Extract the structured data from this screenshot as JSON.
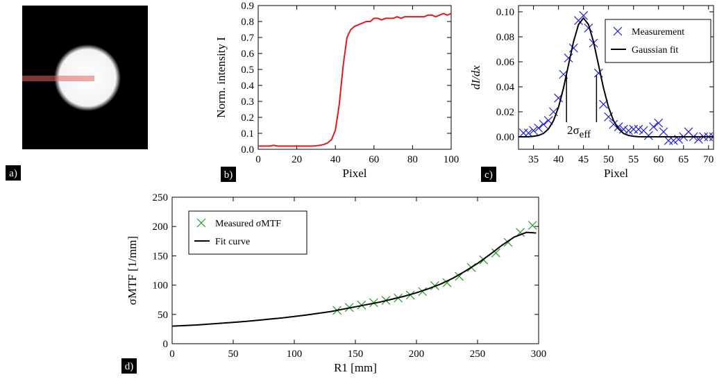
{
  "chart_data": [
    {
      "type": "image",
      "label": "a)"
    },
    {
      "type": "line",
      "label": "b)",
      "xlabel": "Pixel",
      "ylabel": "Norm. intensity I",
      "xlim": [
        0,
        100
      ],
      "xticks": [
        0,
        20,
        40,
        60,
        80,
        100
      ],
      "ylim": [
        0,
        0.9
      ],
      "yticks": [
        {
          "value": 0,
          "label": "0.0"
        },
        0.1,
        0.2,
        0.3,
        0.4,
        0.5,
        0.6,
        0.7,
        0.8,
        0.9
      ],
      "series": [
        {
          "color": "#e8141c",
          "style": "line",
          "x": [
            0,
            2,
            4,
            6,
            8,
            10,
            12,
            14,
            16,
            18,
            20,
            22,
            24,
            26,
            28,
            30,
            32,
            34,
            36,
            38,
            40,
            42,
            44,
            46,
            48,
            50,
            52,
            54,
            56,
            58,
            60,
            62,
            64,
            66,
            68,
            70,
            72,
            74,
            76,
            78,
            80,
            82,
            84,
            86,
            88,
            90,
            92,
            94,
            96,
            98,
            100
          ],
          "values": [
            0.02,
            0.02,
            0.02,
            0.02,
            0.025,
            0.02,
            0.02,
            0.02,
            0.02,
            0.02,
            0.02,
            0.02,
            0.02,
            0.02,
            0.02,
            0.022,
            0.025,
            0.03,
            0.04,
            0.06,
            0.12,
            0.28,
            0.52,
            0.7,
            0.75,
            0.77,
            0.78,
            0.79,
            0.8,
            0.8,
            0.82,
            0.82,
            0.81,
            0.82,
            0.82,
            0.82,
            0.83,
            0.82,
            0.83,
            0.83,
            0.83,
            0.83,
            0.83,
            0.83,
            0.84,
            0.84,
            0.83,
            0.84,
            0.85,
            0.84,
            0.85
          ]
        }
      ]
    },
    {
      "type": "scatter",
      "label": "c)",
      "xlabel": "Pixel",
      "ylabel": "dI/dx",
      "legend": "upper right",
      "xlim": [
        32,
        71
      ],
      "xticks": [
        35,
        40,
        45,
        50,
        55,
        60,
        65,
        70
      ],
      "ylim": [
        -0.01,
        0.105
      ],
      "yticks": [
        {
          "value": 0,
          "label": "0.00"
        },
        0.02,
        0.04,
        0.06,
        0.08,
        {
          "value": 0.1,
          "label": "0.10"
        }
      ],
      "annotation": "2σ",
      "annotation_sub": "eff",
      "annotation_lines": [
        41.6,
        47.6
      ],
      "series": [
        {
          "name": "Measurement",
          "color": "#1f1fe0",
          "style": "marker",
          "x": [
            33,
            34,
            35,
            36,
            37,
            38,
            39,
            40,
            41,
            42,
            43,
            44,
            45,
            46,
            47,
            48,
            49,
            50,
            51,
            52,
            53,
            54,
            55,
            56,
            57,
            58,
            59,
            60,
            61,
            62,
            63,
            64,
            65,
            66,
            67,
            68,
            69,
            70,
            71
          ],
          "values": [
            0.003,
            0.003,
            0.005,
            0.007,
            0.01,
            0.013,
            0.02,
            0.031,
            0.05,
            0.063,
            0.071,
            0.093,
            0.097,
            0.087,
            0.075,
            0.051,
            0.026,
            0.016,
            0.01,
            0.008,
            0.006,
            0.005,
            0.006,
            0.006,
            0.005,
            0.001,
            0.008,
            0.011,
            0.004,
            -0.003,
            -0.003,
            -0.002,
            0.0,
            0.004,
            0.0,
            -0.002,
            0.0,
            0.0,
            0.0
          ]
        },
        {
          "name": "Gaussian fit",
          "color": "#000000",
          "style": "line",
          "x": [
            32,
            33,
            34,
            35,
            36,
            37,
            38,
            39,
            40,
            41,
            42,
            43,
            44,
            45,
            46,
            47,
            48,
            49,
            50,
            51,
            52,
            53,
            54,
            55,
            56,
            57,
            58,
            59,
            60,
            61,
            62,
            63,
            64,
            65,
            66,
            67,
            68,
            69,
            70,
            71
          ],
          "values": [
            0,
            0,
            0.0001,
            0.0004,
            0.0011,
            0.0027,
            0.0063,
            0.0129,
            0.0237,
            0.039,
            0.0576,
            0.076,
            0.0898,
            0.095,
            0.0898,
            0.076,
            0.0576,
            0.039,
            0.0237,
            0.0129,
            0.0063,
            0.0027,
            0.0011,
            0.0004,
            0.0001,
            0,
            0,
            0,
            0,
            0,
            0,
            0,
            0,
            0,
            0,
            0,
            0,
            0,
            0,
            0
          ]
        }
      ]
    },
    {
      "type": "scatter",
      "label": "d)",
      "xlabel": "R1 [mm]",
      "ylabel": "σMTF [1/mm]",
      "legend": "upper left",
      "xlim": [
        0,
        300
      ],
      "xticks": [
        0,
        50,
        100,
        150,
        200,
        250,
        300
      ],
      "ylim": [
        0,
        250
      ],
      "yticks": [
        0,
        50,
        100,
        150,
        200,
        250
      ],
      "series": [
        {
          "name": "Measured σMTF",
          "color": "#1e9a1e",
          "style": "marker",
          "x": [
            135,
            145,
            155,
            165,
            175,
            185,
            195,
            205,
            215,
            225,
            235,
            245,
            255,
            265,
            275,
            285,
            295
          ],
          "values": [
            57,
            62,
            66,
            70,
            74,
            78,
            83,
            89,
            99,
            104,
            115,
            130,
            143,
            155,
            173,
            190,
            202
          ]
        },
        {
          "name": "Fit curve",
          "color": "#000000",
          "style": "line",
          "x": [
            0,
            10,
            20,
            30,
            40,
            50,
            60,
            70,
            80,
            90,
            100,
            110,
            120,
            130,
            140,
            150,
            160,
            170,
            180,
            190,
            200,
            210,
            220,
            230,
            240,
            250,
            260,
            270,
            280,
            290,
            298
          ],
          "values": [
            30,
            31,
            32,
            33.5,
            35,
            36.5,
            38,
            40,
            42,
            44,
            46.5,
            49,
            52,
            55,
            59,
            63,
            67,
            71,
            76,
            81,
            87,
            94,
            102,
            112,
            124,
            137,
            152,
            168,
            182,
            190,
            189
          ]
        }
      ]
    }
  ]
}
